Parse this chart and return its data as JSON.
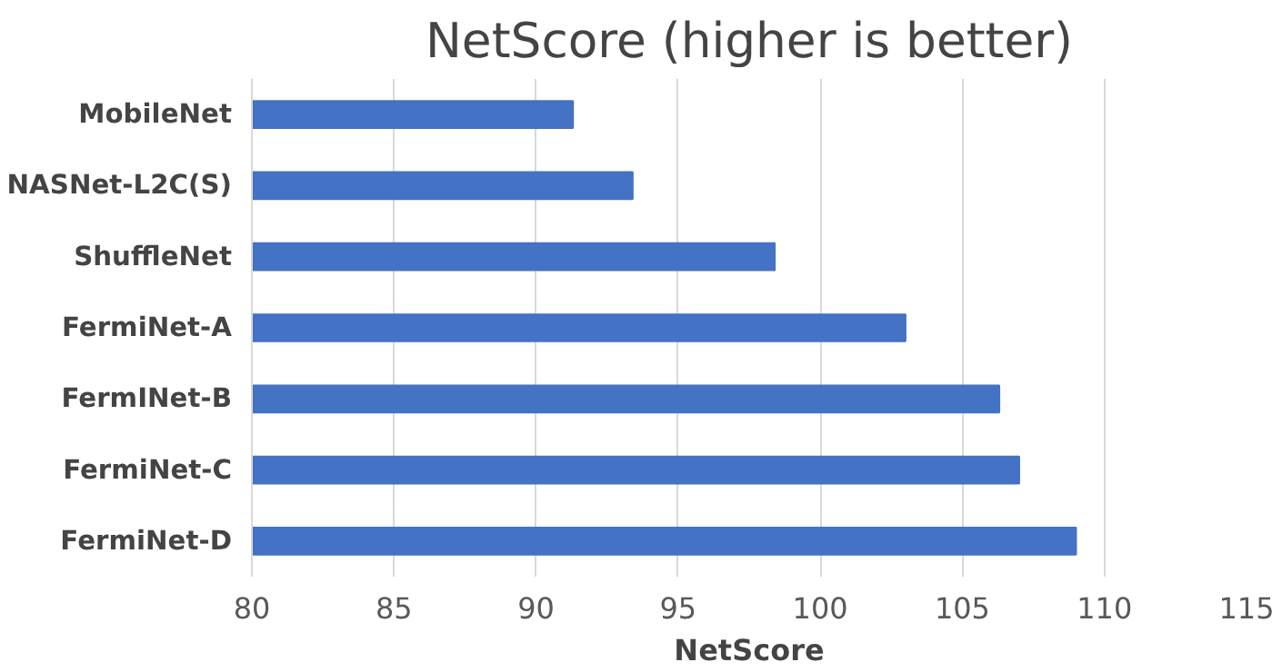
{
  "chart_data": {
    "type": "bar",
    "orientation": "horizontal",
    "title": "NetScore (higher is better)",
    "xlabel": "NetScore",
    "categories": [
      "MobileNet",
      "NASNet-L2C(S)",
      "ShuffleNet",
      "FermiNet-A",
      "FermINet-B",
      "FermiNet-C",
      "FermiNet-D"
    ],
    "values": [
      91.3,
      93.4,
      98.4,
      103.0,
      106.3,
      107.0,
      109.0
    ],
    "color": "#4472c4",
    "xlim": [
      80,
      115
    ],
    "xticks": [
      80,
      85,
      90,
      95,
      100,
      105,
      110,
      115
    ],
    "grid": "x"
  }
}
